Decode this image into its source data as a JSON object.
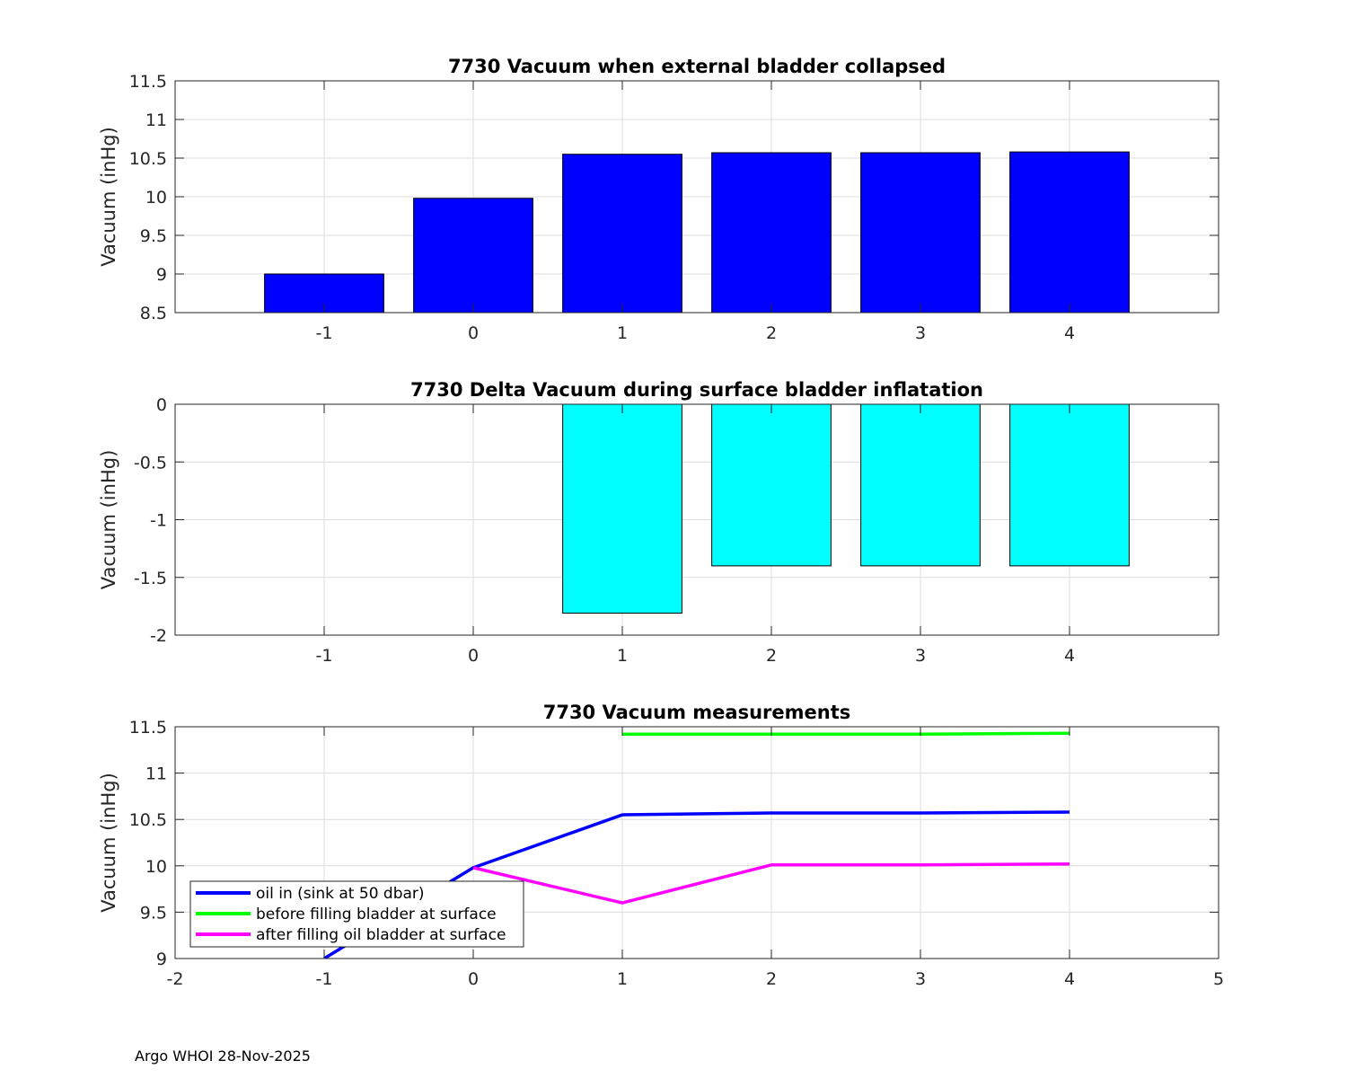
{
  "footer": "Argo WHOI 28-Nov-2025",
  "chart_data": [
    {
      "type": "bar",
      "title": "7730 Vacuum when external bladder collapsed",
      "ylabel": "Vacuum (inHg)",
      "xlim": [
        -2,
        5
      ],
      "ylim": [
        8.5,
        11.5
      ],
      "xticks": [
        "-1",
        "0",
        "1",
        "2",
        "3",
        "4"
      ],
      "yticks": [
        "8.5",
        "9",
        "9.5",
        "10",
        "10.5",
        "11",
        "11.5"
      ],
      "categories": [
        -1,
        0,
        1,
        2,
        3,
        4
      ],
      "values": [
        9.0,
        9.98,
        10.55,
        10.57,
        10.57,
        10.58
      ],
      "color": "#0000ff",
      "grid": true
    },
    {
      "type": "bar",
      "title": "7730 Delta Vacuum during surface bladder inflatation",
      "ylabel": "Vacuum (inHg)",
      "xlim": [
        -2,
        5
      ],
      "ylim": [
        -2,
        0
      ],
      "xticks": [
        "-1",
        "0",
        "1",
        "2",
        "3",
        "4"
      ],
      "yticks": [
        "-2",
        "-1.5",
        "-1",
        "-0.5",
        "0"
      ],
      "categories": [
        1,
        2,
        3,
        4
      ],
      "values": [
        -1.81,
        -1.4,
        -1.4,
        -1.4
      ],
      "color": "#00ffff",
      "grid": true
    },
    {
      "type": "line",
      "title": "7730 Vacuum measurements",
      "ylabel": "Vacuum (inHg)",
      "xlim": [
        -2,
        5
      ],
      "ylim": [
        9,
        11.5
      ],
      "xticks": [
        "-2",
        "-1",
        "0",
        "1",
        "2",
        "3",
        "4",
        "5"
      ],
      "yticks": [
        "9",
        "9.5",
        "10",
        "10.5",
        "11",
        "11.5"
      ],
      "legend_position": "bottom-left",
      "grid": true,
      "series": [
        {
          "name": "oil in (sink at 50 dbar)",
          "color": "#0000ff",
          "x": [
            -1,
            0,
            1,
            2,
            3,
            4
          ],
          "y": [
            9.0,
            9.98,
            10.55,
            10.57,
            10.57,
            10.58
          ]
        },
        {
          "name": "before filling bladder at surface",
          "color": "#00ff00",
          "x": [
            1,
            2,
            3,
            4
          ],
          "y": [
            11.42,
            11.42,
            11.42,
            11.43
          ]
        },
        {
          "name": "after filling oil bladder at surface",
          "color": "#ff00ff",
          "x": [
            0,
            1,
            2,
            3,
            4
          ],
          "y": [
            9.98,
            9.6,
            10.01,
            10.01,
            10.02
          ]
        }
      ]
    }
  ]
}
